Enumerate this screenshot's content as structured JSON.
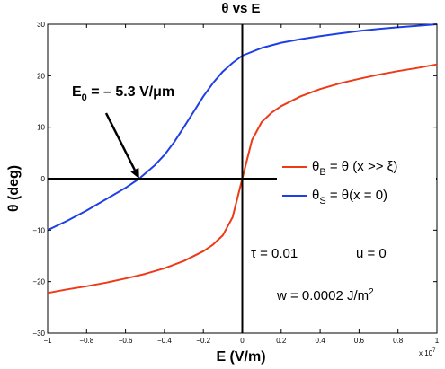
{
  "chart_data": {
    "type": "line",
    "title": "θ vs E",
    "xlabel": "E (V/m)",
    "ylabel": "θ (deg)",
    "x_multiplier_label": "x 10",
    "x_multiplier_exp": "7",
    "xlim": [
      -1,
      1
    ],
    "ylim": [
      -30,
      30
    ],
    "x_ticks": [
      "−1",
      "−0.8",
      "−0.6",
      "−0.4",
      "−0.2",
      "0",
      "0.2",
      "0.4",
      "0.6",
      "0.8",
      "1"
    ],
    "y_ticks": [
      "30",
      "20",
      "10",
      "0",
      "−10",
      "−20",
      "−30"
    ],
    "grid": false,
    "legend_position": "right",
    "series": [
      {
        "name": "θB = θ (x >> ξ)",
        "color": "#ee3a16",
        "x": [
          -1,
          -0.9,
          -0.8,
          -0.7,
          -0.6,
          -0.5,
          -0.4,
          -0.3,
          -0.2,
          -0.15,
          -0.1,
          -0.05,
          0,
          0.05,
          0.1,
          0.15,
          0.2,
          0.3,
          0.4,
          0.5,
          0.6,
          0.7,
          0.8,
          0.9,
          1
        ],
        "y": [
          -22.2,
          -21.5,
          -20.9,
          -20.2,
          -19.4,
          -18.5,
          -17.4,
          -16.0,
          -14.1,
          -12.8,
          -11.0,
          -7.5,
          0,
          7.5,
          11.0,
          12.8,
          14.1,
          16.0,
          17.4,
          18.5,
          19.4,
          20.2,
          20.9,
          21.5,
          22.2
        ]
      },
      {
        "name": "θS = θ(x = 0)",
        "color": "#1f3fe6",
        "x": [
          -1,
          -0.9,
          -0.8,
          -0.7,
          -0.6,
          -0.53,
          -0.45,
          -0.4,
          -0.35,
          -0.3,
          -0.25,
          -0.2,
          -0.15,
          -0.1,
          -0.05,
          0,
          0.1,
          0.2,
          0.3,
          0.4,
          0.5,
          0.6,
          0.7,
          0.8,
          0.9,
          1
        ],
        "y": [
          -10.0,
          -8.2,
          -6.2,
          -4.0,
          -1.8,
          0,
          2.6,
          4.6,
          7.1,
          10.0,
          13.0,
          16.0,
          18.6,
          20.8,
          22.5,
          23.9,
          25.4,
          26.4,
          27.1,
          27.7,
          28.2,
          28.7,
          29.1,
          29.4,
          29.7,
          30.0
        ]
      }
    ],
    "legend": {
      "b_theta": "θ",
      "b_sub": "B",
      "b_rest": " = θ (x >> ξ)",
      "s_theta": "θ",
      "s_sub": "S",
      "s_rest": " = θ(x = 0)"
    },
    "annotations": {
      "e0_main": "E",
      "e0_sub": "0",
      "e0_rest": " = – 5.3 V/μm",
      "e0_point": {
        "x": -0.53,
        "y": 0
      },
      "tau": "τ = 0.01",
      "u": "u = 0",
      "w_main": "w = 0.0002 J/m",
      "w_sup": "2"
    }
  }
}
